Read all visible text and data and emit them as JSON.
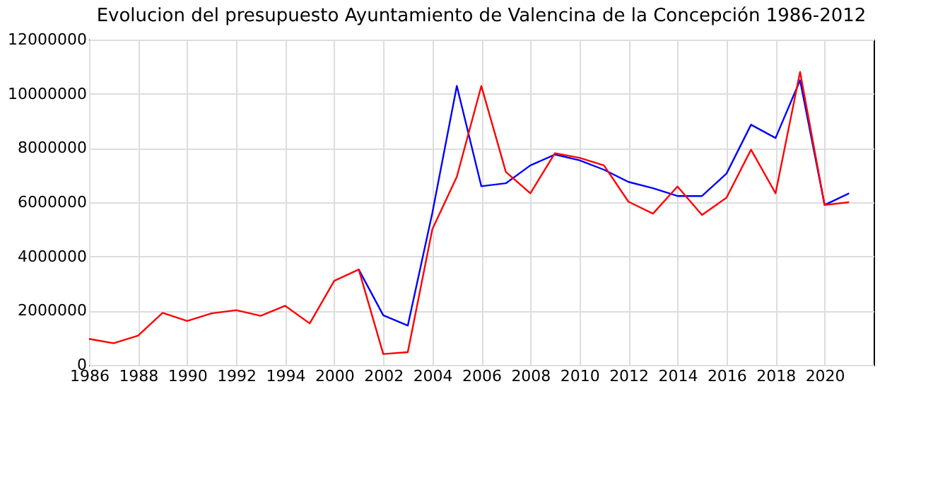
{
  "chart_data": {
    "type": "line",
    "title": "Evolucion del presupuesto Ayuntamiento de Valencina de la Concepción 1986-2012",
    "categories": [
      "1986",
      null,
      "1988",
      null,
      "1990",
      null,
      "1992",
      null,
      "1994",
      null,
      "2000",
      null,
      "2002",
      null,
      "2004",
      null,
      "2006",
      null,
      "2008",
      null,
      "2010",
      null,
      "2012",
      null,
      "2014",
      null,
      "2016",
      null,
      "2018",
      null,
      "2020",
      null
    ],
    "series": [
      {
        "color": "#0000ff",
        "values": [
          null,
          null,
          null,
          null,
          null,
          null,
          null,
          null,
          null,
          null,
          null,
          3520000,
          1830000,
          1450000,
          5600000,
          10290000,
          6590000,
          6700000,
          7360000,
          7760000,
          7550000,
          7200000,
          6750000,
          6520000,
          6230000,
          6230000,
          7060000,
          8860000,
          8370000,
          10500000,
          5900000,
          6330000
        ]
      },
      {
        "color": "#ff0000",
        "values": [
          960000,
          800000,
          1080000,
          1920000,
          1620000,
          1900000,
          2020000,
          1810000,
          2180000,
          1530000,
          3100000,
          3520000,
          400000,
          470000,
          5000000,
          6940000,
          10290000,
          7120000,
          6330000,
          7810000,
          7640000,
          7360000,
          6020000,
          5580000,
          6580000,
          5530000,
          6170000,
          7940000,
          6330000,
          10810000,
          5900000,
          6000000
        ]
      }
    ],
    "ylim": [
      0,
      12000000
    ],
    "yticks": [
      0,
      2000000,
      4000000,
      6000000,
      8000000,
      10000000,
      12000000
    ],
    "grid": true,
    "line_style": "solid",
    "marker": "none"
  }
}
